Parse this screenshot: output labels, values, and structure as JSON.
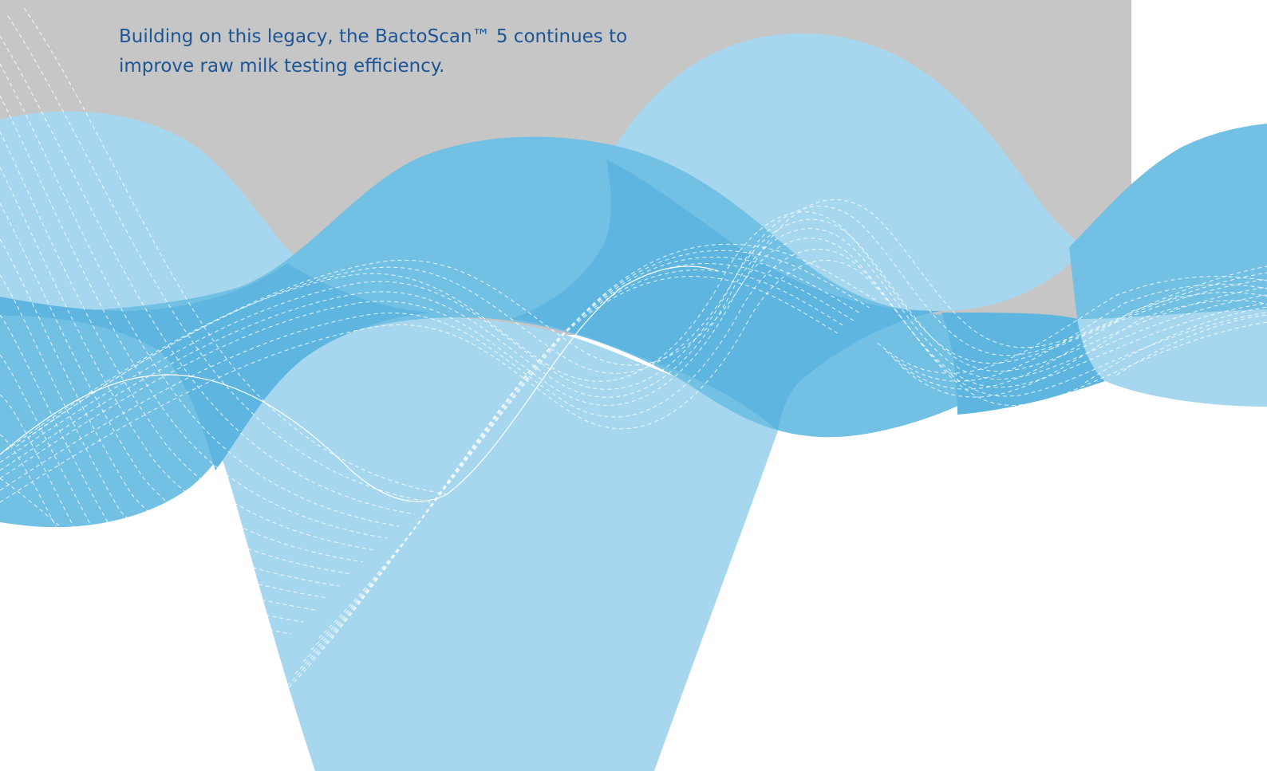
{
  "intro": {
    "line1": "Building on this legacy, the BactoScan™ 5 continues to",
    "line2": "improve raw milk testing efficiency."
  },
  "colors": {
    "background": "#ffffff",
    "panel_gray": "#c6c6c6",
    "text_blue": "#1c5596",
    "wave_light": "#a6d7ee",
    "wave_medium": "#72c0e4",
    "wave_dark": "#5db5e0",
    "dash_line": "#ffffff"
  }
}
